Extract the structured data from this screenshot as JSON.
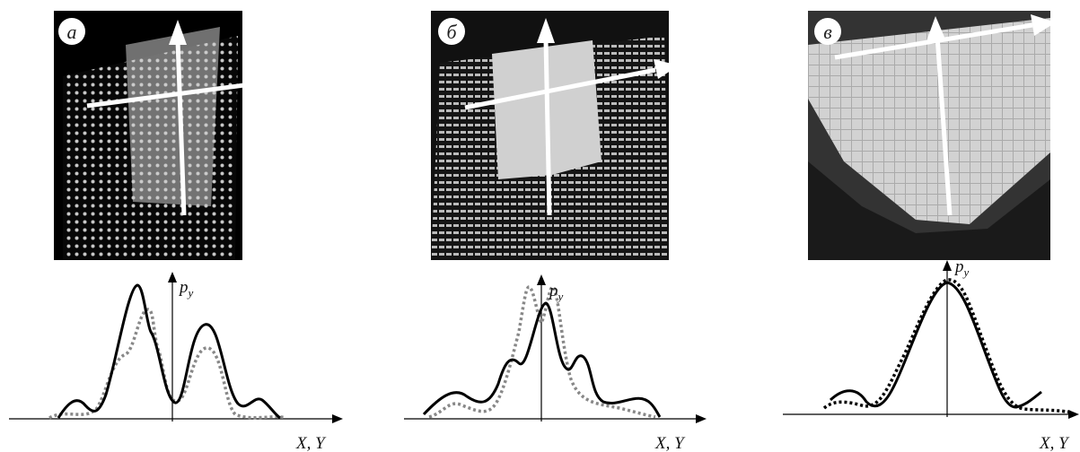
{
  "panels": [
    {
      "label": "а",
      "y_axis": {
        "main": "p",
        "sub": "y"
      },
      "x_axis": "X, Y"
    },
    {
      "label": "б",
      "y_axis": {
        "main": "p",
        "sub": "y"
      },
      "x_axis": "X, Y"
    },
    {
      "label": "в",
      "y_axis": {
        "main": "p",
        "sub": "y"
      },
      "x_axis": "X, Y"
    }
  ]
}
